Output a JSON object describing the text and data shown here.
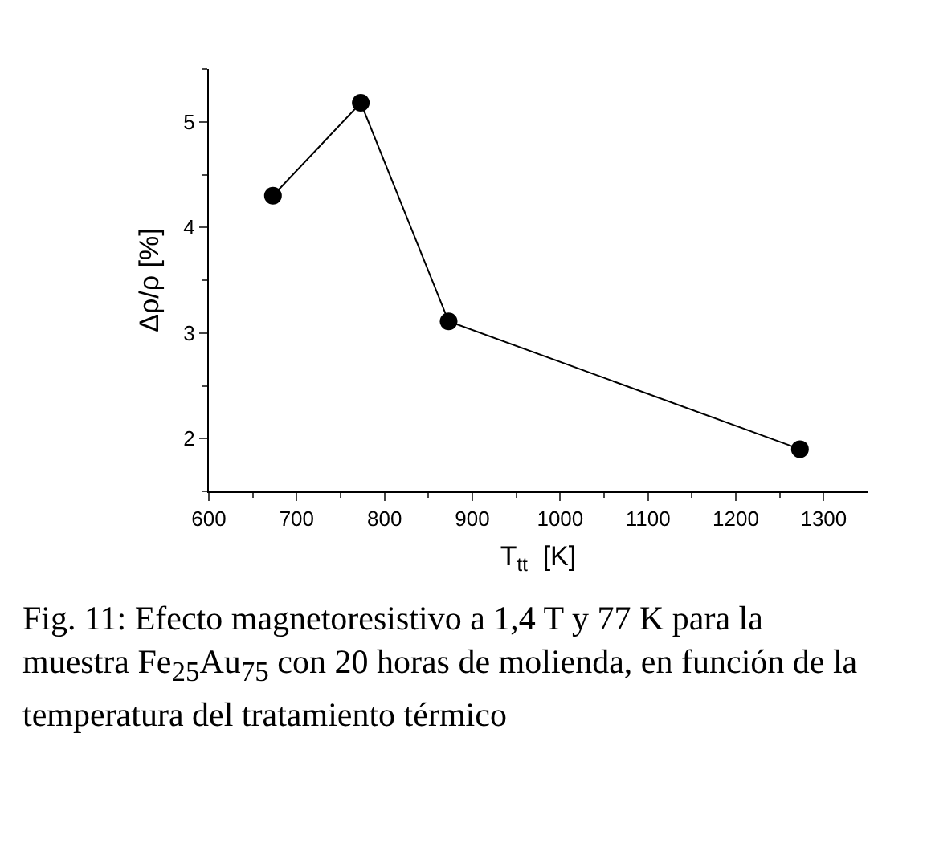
{
  "chart_data": {
    "type": "line",
    "xlabel": "T$_{tt}$  [K]",
    "ylabel": "Δρ/ρ [%]",
    "x": [
      673,
      773,
      873,
      1273
    ],
    "series": [
      {
        "color": "#000000",
        "values": [
          4.3,
          5.18,
          3.11,
          1.9
        ]
      }
    ],
    "marker": "circle",
    "line_style": "solid",
    "grid": false,
    "xlim": [
      600,
      1350
    ],
    "xticks": [
      600,
      {
        "value": 650,
        "label": null
      },
      700,
      {
        "value": 750,
        "label": null
      },
      800,
      {
        "value": 850,
        "label": null
      },
      900,
      {
        "value": 950,
        "label": null
      },
      1000,
      {
        "value": 1050,
        "label": null
      },
      1100,
      {
        "value": 1150,
        "label": null
      },
      1200,
      {
        "value": 1250,
        "label": null
      },
      1300
    ],
    "ylim": [
      1.5,
      5.5
    ],
    "yticks": [
      {
        "value": 1.5,
        "label": null
      },
      2,
      {
        "value": 2.5,
        "label": null
      },
      3,
      {
        "value": 3.5,
        "label": null
      },
      4,
      {
        "value": 4.5,
        "label": null
      },
      5,
      {
        "value": 5.5,
        "label": null
      }
    ],
    "annotations": [
      "Fig. 11: Efecto magnetoresistivo a 1,4 T y 77 K para la muestra Fe$_{25}$Au$_{75}$ con 20 horas de molienda, en función de la temperatura del tratamiento térmico"
    ]
  }
}
